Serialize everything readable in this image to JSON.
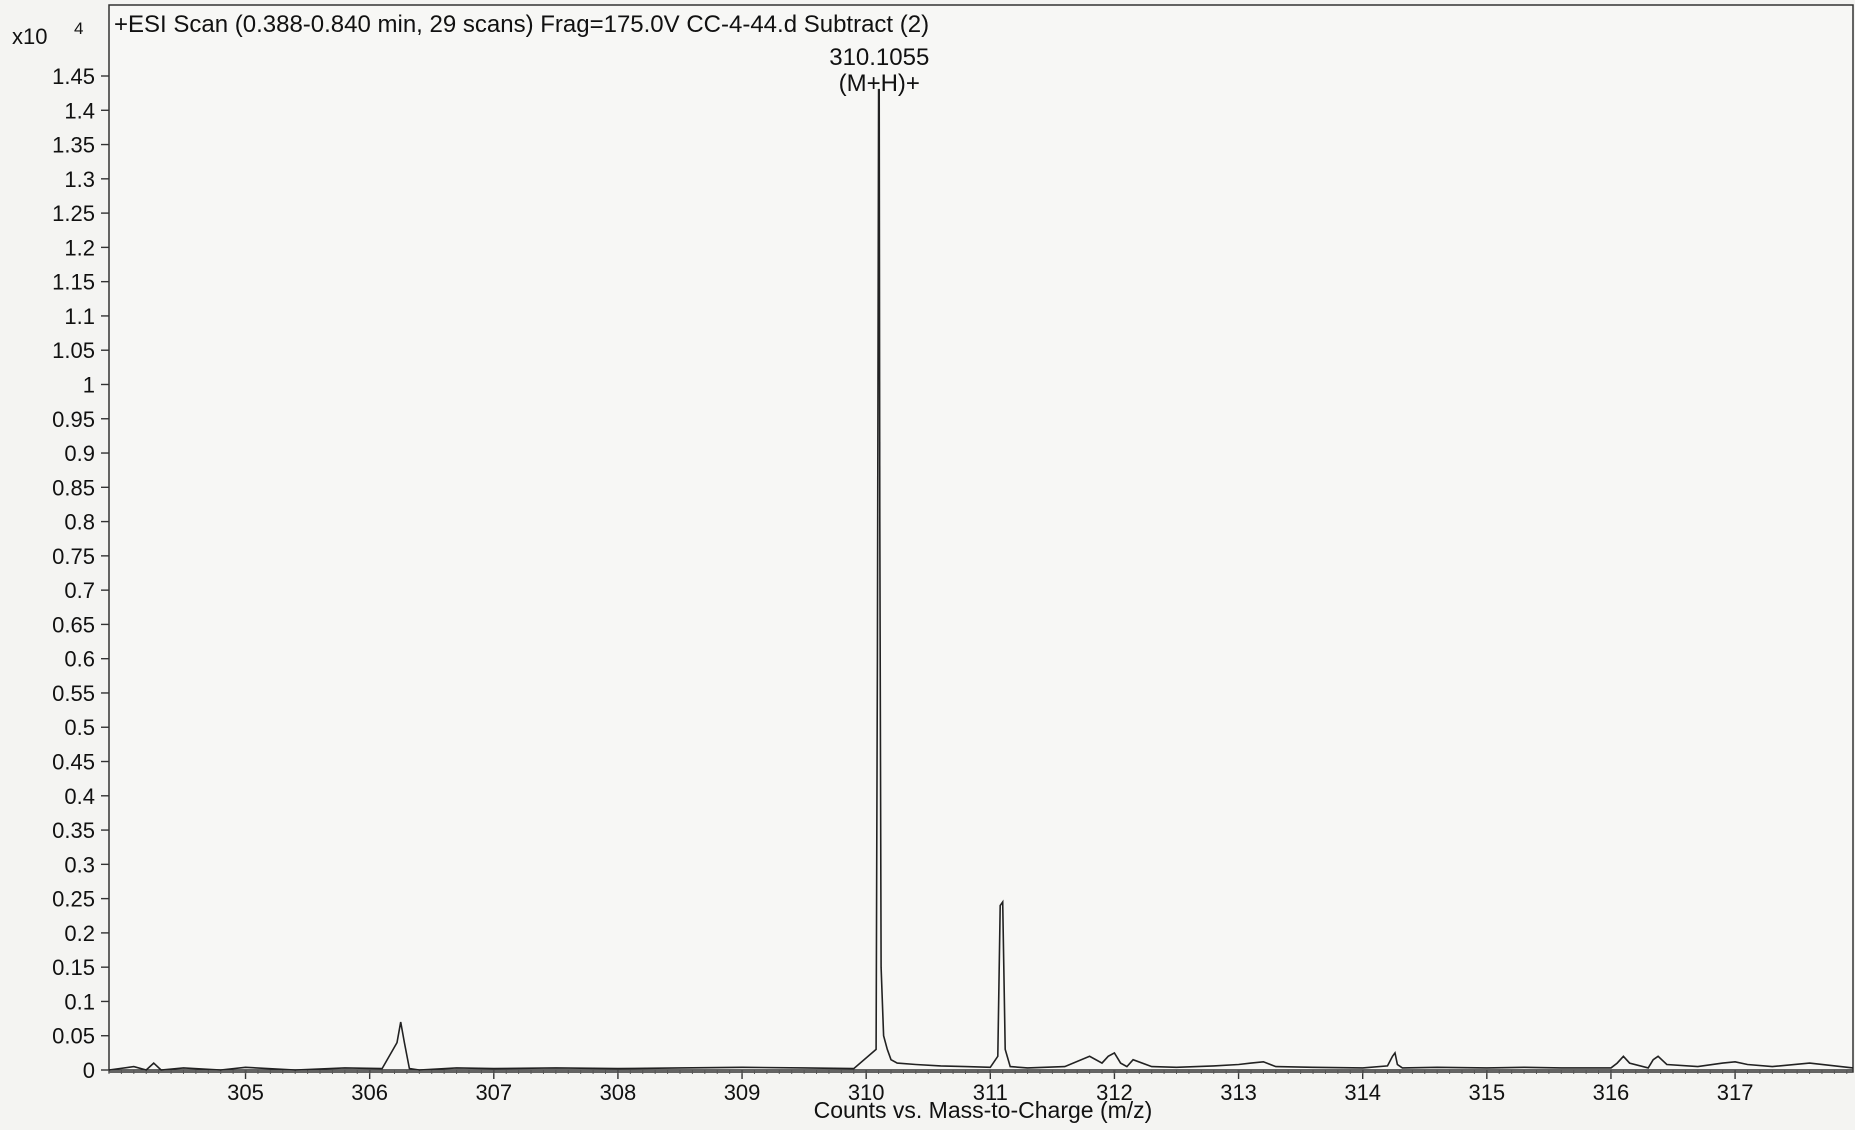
{
  "chart_data": {
    "type": "line",
    "title": "+ESI Scan (0.388-0.840 min, 29 scans) Frag=175.0V CC-4-44.d  Subtract (2)",
    "xlabel": "Counts vs. Mass-to-Charge (m/z)",
    "y_multiplier_label": "x10",
    "y_multiplier_exponent": "4",
    "xlim": [
      303.9,
      317.95
    ],
    "ylim": [
      0,
      1.5
    ],
    "x_ticks": [
      305,
      306,
      307,
      308,
      309,
      310,
      311,
      312,
      313,
      314,
      315,
      316,
      317
    ],
    "x_tick_labels": [
      "305",
      "306",
      "307",
      "308",
      "309",
      "310",
      "311",
      "312",
      "313",
      "314",
      "315",
      "316",
      "317"
    ],
    "y_ticks": [
      0,
      0.05,
      0.1,
      0.15,
      0.2,
      0.25,
      0.3,
      0.35,
      0.4,
      0.45,
      0.5,
      0.55,
      0.6,
      0.65,
      0.7,
      0.75,
      0.8,
      0.85,
      0.9,
      0.95,
      1,
      1.05,
      1.1,
      1.15,
      1.2,
      1.25,
      1.3,
      1.35,
      1.4,
      1.45
    ],
    "y_tick_labels": [
      "0",
      "0.05",
      "0.1",
      "0.15",
      "0.2",
      "0.25",
      "0.3",
      "0.35",
      "0.4",
      "0.45",
      "0.5",
      "0.55",
      "0.6",
      "0.65",
      "0.7",
      "0.75",
      "0.8",
      "0.85",
      "0.9",
      "0.95",
      "1",
      "1.05",
      "1.1",
      "1.15",
      "1.2",
      "1.25",
      "1.3",
      "1.35",
      "1.4",
      "1.45"
    ],
    "grid": false,
    "series": [
      {
        "x": [
          303.9,
          304.1,
          304.2,
          304.26,
          304.32,
          304.5,
          304.8,
          305.0,
          305.4,
          305.8,
          306.1,
          306.22,
          306.25,
          306.28,
          306.32,
          306.4,
          306.7,
          307.0,
          307.5,
          308.0,
          308.5,
          309.0,
          309.5,
          309.9,
          310.08,
          310.09,
          310.1,
          310.105,
          310.11,
          310.12,
          310.14,
          310.17,
          310.2,
          310.25,
          310.4,
          310.6,
          310.8,
          311.0,
          311.06,
          311.08,
          311.1,
          311.12,
          311.16,
          311.3,
          311.6,
          311.8,
          311.9,
          311.95,
          312.0,
          312.05,
          312.1,
          312.15,
          312.3,
          312.5,
          312.8,
          313.0,
          313.1,
          313.2,
          313.3,
          313.6,
          314.0,
          314.2,
          314.24,
          314.26,
          314.28,
          314.32,
          314.6,
          315.0,
          315.3,
          315.6,
          316.0,
          316.05,
          316.1,
          316.15,
          316.3,
          316.34,
          316.38,
          316.45,
          316.7,
          316.9,
          317.0,
          317.1,
          317.3,
          317.6,
          317.95
        ],
        "y": [
          0.0,
          0.005,
          0.0,
          0.01,
          0.0,
          0.003,
          0.0,
          0.004,
          0.0,
          0.003,
          0.002,
          0.04,
          0.07,
          0.04,
          0.002,
          0.0,
          0.003,
          0.002,
          0.003,
          0.002,
          0.003,
          0.004,
          0.003,
          0.002,
          0.03,
          0.6,
          1.43,
          1.43,
          0.8,
          0.15,
          0.05,
          0.03,
          0.015,
          0.01,
          0.008,
          0.006,
          0.005,
          0.004,
          0.02,
          0.24,
          0.245,
          0.03,
          0.005,
          0.003,
          0.005,
          0.02,
          0.01,
          0.02,
          0.025,
          0.01,
          0.005,
          0.015,
          0.005,
          0.004,
          0.006,
          0.008,
          0.01,
          0.012,
          0.005,
          0.004,
          0.003,
          0.006,
          0.02,
          0.025,
          0.008,
          0.003,
          0.004,
          0.003,
          0.004,
          0.003,
          0.003,
          0.01,
          0.02,
          0.01,
          0.003,
          0.015,
          0.02,
          0.008,
          0.005,
          0.01,
          0.012,
          0.008,
          0.005,
          0.01,
          0.003
        ]
      }
    ],
    "annotations": [
      {
        "x": 310.1055,
        "lines": [
          "310.1055",
          "(M+H)+"
        ]
      }
    ]
  }
}
